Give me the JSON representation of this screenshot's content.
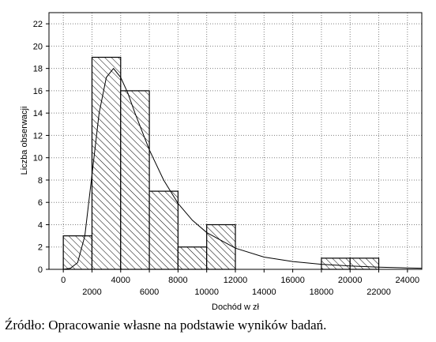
{
  "chart_data": {
    "type": "bar",
    "subtype": "histogram",
    "bins": [
      {
        "from": 0,
        "to": 2000,
        "value": 3
      },
      {
        "from": 2000,
        "to": 4000,
        "value": 19
      },
      {
        "from": 4000,
        "to": 6000,
        "value": 16
      },
      {
        "from": 6000,
        "to": 8000,
        "value": 7
      },
      {
        "from": 8000,
        "to": 10000,
        "value": 2
      },
      {
        "from": 10000,
        "to": 12000,
        "value": 4
      },
      {
        "from": 12000,
        "to": 14000,
        "value": 0
      },
      {
        "from": 14000,
        "to": 16000,
        "value": 0
      },
      {
        "from": 16000,
        "to": 18000,
        "value": 0
      },
      {
        "from": 18000,
        "to": 20000,
        "value": 1
      },
      {
        "from": 20000,
        "to": 22000,
        "value": 1
      },
      {
        "from": 22000,
        "to": 24000,
        "value": 0
      },
      {
        "from": 24000,
        "to": 26000,
        "value": 0
      }
    ],
    "fitted_curve": {
      "x": [
        0,
        500,
        1000,
        1500,
        2000,
        2500,
        3000,
        3500,
        4000,
        4500,
        5000,
        6000,
        7000,
        8000,
        9000,
        10000,
        12000,
        14000,
        16000,
        18000,
        20000,
        22000,
        24000,
        25000
      ],
      "y": [
        0,
        0.1,
        0.6,
        3.0,
        8.5,
        14.0,
        17.2,
        18.0,
        17.2,
        15.8,
        14.0,
        10.7,
        8.0,
        5.9,
        4.4,
        3.3,
        1.9,
        1.1,
        0.7,
        0.45,
        0.3,
        0.2,
        0.13,
        0.1
      ]
    },
    "xlabel": "Dochód w zł",
    "ylabel": "Liczba obserwacji",
    "xlim": [
      -1000,
      25000
    ],
    "ylim": [
      0,
      23
    ],
    "x_ticks_upper": [
      0,
      4000,
      8000,
      12000,
      16000,
      20000,
      24000
    ],
    "x_ticks_lower": [
      2000,
      6000,
      10000,
      14000,
      18000,
      22000
    ],
    "y_ticks": [
      0,
      2,
      4,
      6,
      8,
      10,
      12,
      14,
      16,
      18,
      20,
      22
    ],
    "grid": true,
    "bar_fill": "hatched",
    "colors": {
      "bar_stroke": "#000000",
      "hatch": "#000000",
      "grid": "#808080",
      "curve": "#000000"
    }
  },
  "caption": "Źródło: Opracowanie własne na podstawie wyników badań."
}
